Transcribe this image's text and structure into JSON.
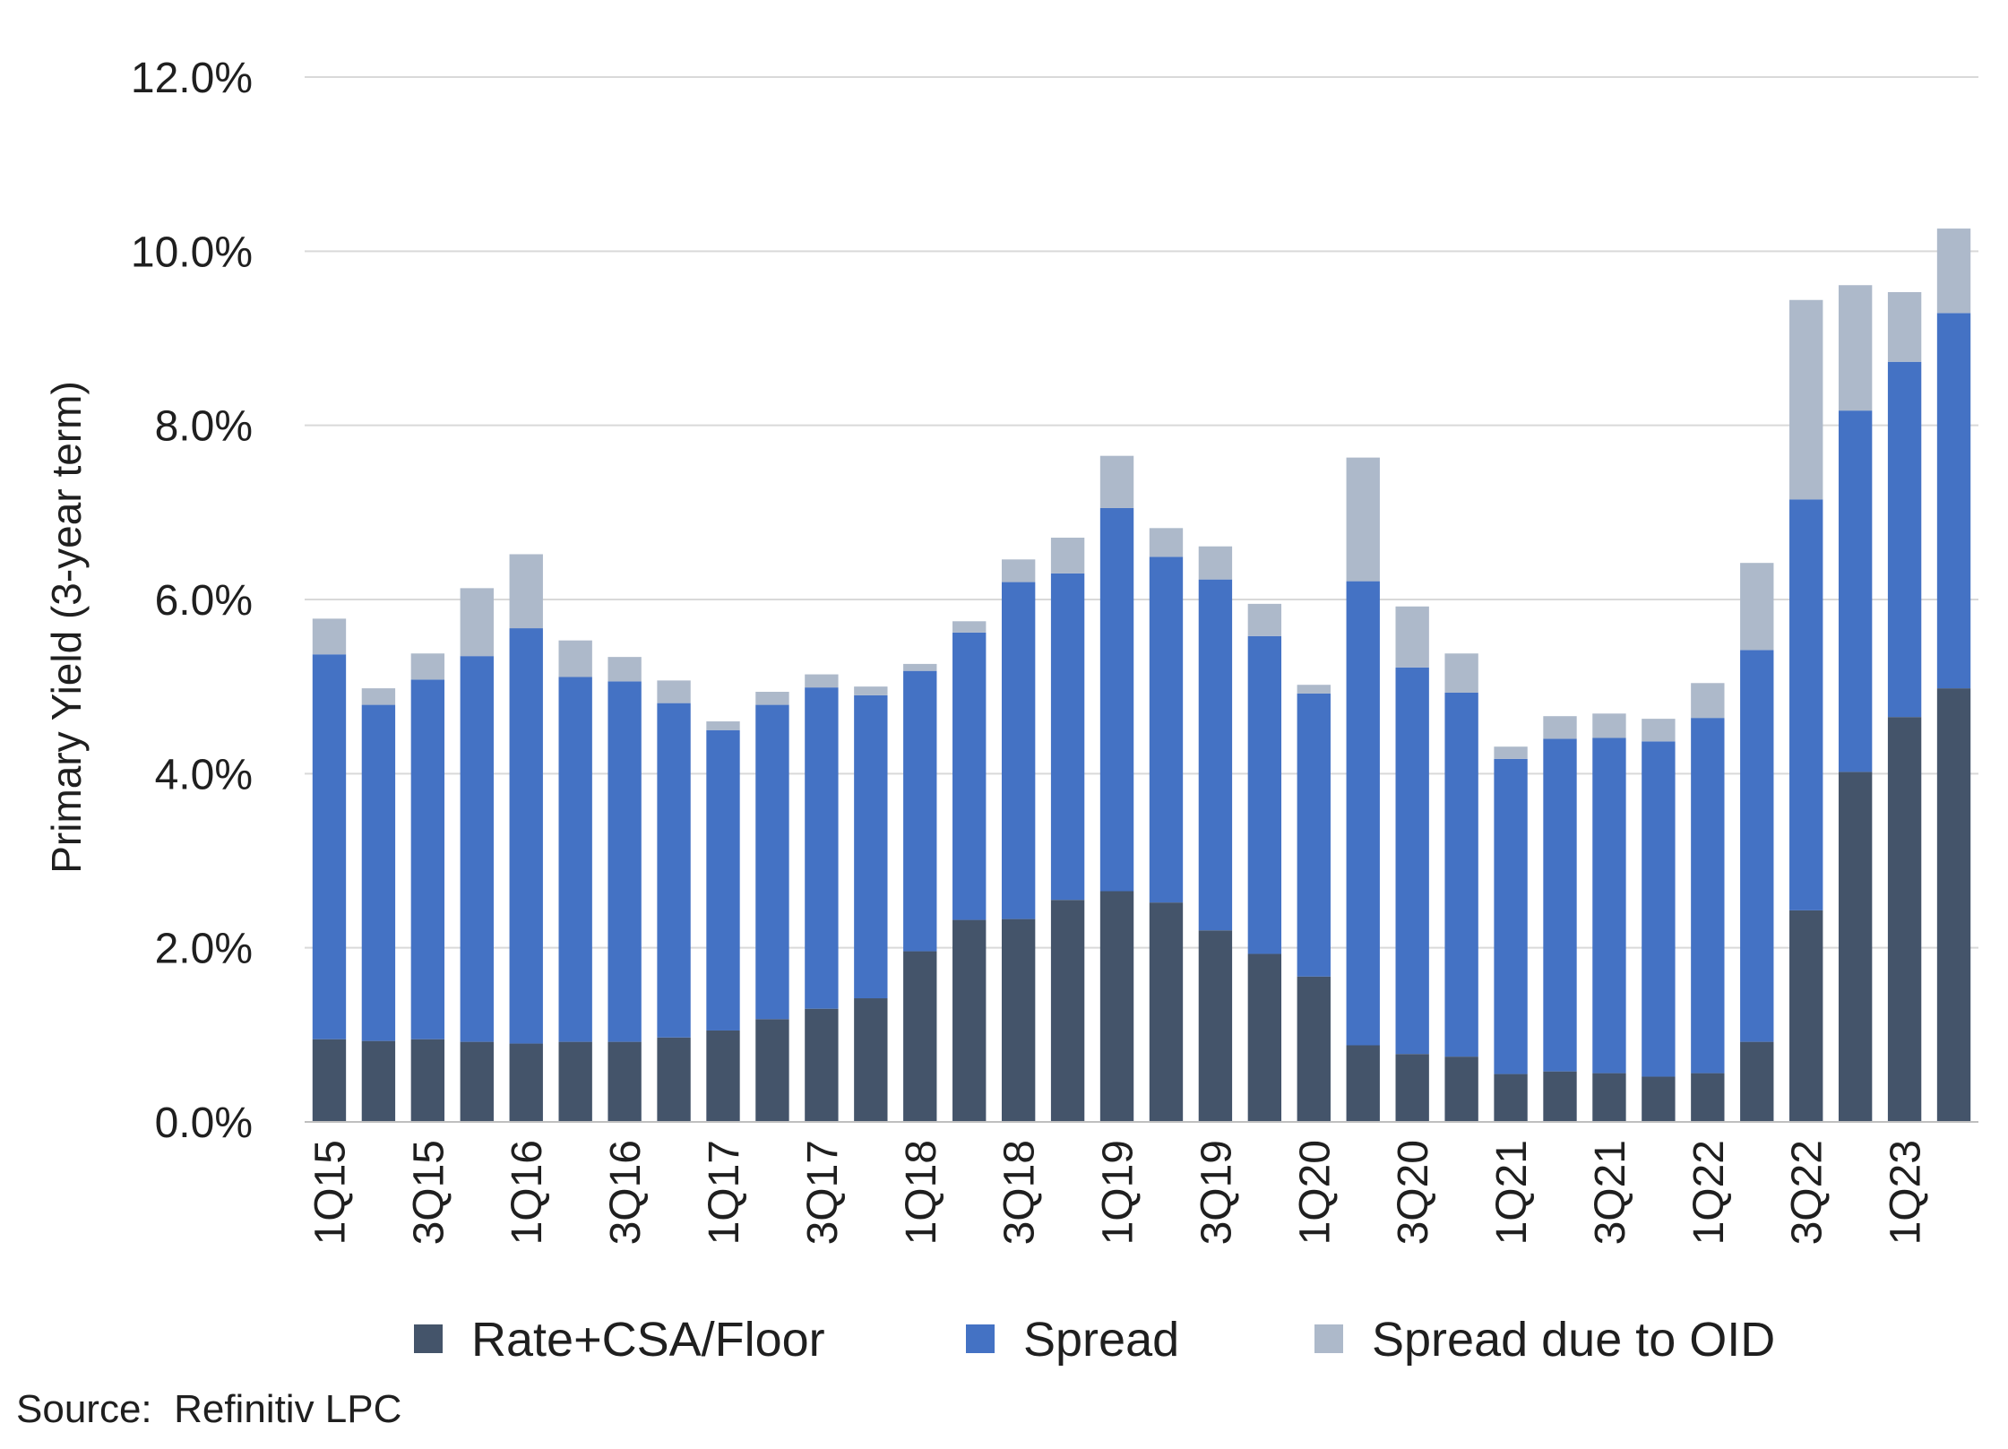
{
  "chart_data": {
    "type": "bar",
    "stacked": true,
    "ylabel": "Primary Yield (3-year term)",
    "ylim": [
      0,
      12
    ],
    "yticks": [
      "0.0%",
      "2.0%",
      "4.0%",
      "6.0%",
      "8.0%",
      "10.0%",
      "12.0%"
    ],
    "grid": true,
    "legend_position": "bottom",
    "categories": [
      "1Q15",
      "2Q15",
      "3Q15",
      "4Q15",
      "1Q16",
      "2Q16",
      "3Q16",
      "4Q16",
      "1Q17",
      "2Q17",
      "3Q17",
      "4Q17",
      "1Q18",
      "2Q18",
      "3Q18",
      "4Q18",
      "1Q19",
      "2Q19",
      "3Q19",
      "4Q19",
      "1Q20",
      "2Q20",
      "3Q20",
      "4Q20",
      "1Q21",
      "2Q21",
      "3Q21",
      "4Q21",
      "1Q22",
      "2Q22",
      "3Q22",
      "4Q22",
      "1Q23",
      "2Q23"
    ],
    "xtick_labels": [
      "1Q15",
      "",
      "3Q15",
      "",
      "1Q16",
      "",
      "3Q16",
      "",
      "1Q17",
      "",
      "3Q17",
      "",
      "1Q18",
      "",
      "3Q18",
      "",
      "1Q19",
      "",
      "3Q19",
      "",
      "1Q20",
      "",
      "3Q20",
      "",
      "1Q21",
      "",
      "3Q21",
      "",
      "1Q22",
      "",
      "3Q22",
      "",
      "1Q23",
      ""
    ],
    "series": [
      {
        "name": "Rate+CSA/Floor",
        "color": "#44546a",
        "values": [
          0.95,
          0.93,
          0.95,
          0.92,
          0.9,
          0.92,
          0.92,
          0.97,
          1.05,
          1.18,
          1.3,
          1.42,
          1.96,
          2.32,
          2.33,
          2.55,
          2.65,
          2.52,
          2.2,
          1.93,
          1.67,
          0.88,
          0.78,
          0.75,
          0.55,
          0.58,
          0.56,
          0.52,
          0.56,
          0.92,
          2.43,
          4.02,
          4.65,
          4.98
        ]
      },
      {
        "name": "Spread",
        "color": "#4472c4",
        "values": [
          4.42,
          3.86,
          4.13,
          4.43,
          4.77,
          4.19,
          4.14,
          3.84,
          3.45,
          3.61,
          3.69,
          3.48,
          3.22,
          3.3,
          3.87,
          3.75,
          4.4,
          3.97,
          4.03,
          3.65,
          3.25,
          5.33,
          4.44,
          4.18,
          3.62,
          3.82,
          3.85,
          3.85,
          4.08,
          4.5,
          4.72,
          4.15,
          4.08,
          4.31
        ]
      },
      {
        "name": "Spread due to OID",
        "color": "#adb9ca",
        "values": [
          0.41,
          0.19,
          0.3,
          0.78,
          0.85,
          0.42,
          0.28,
          0.26,
          0.1,
          0.15,
          0.15,
          0.1,
          0.08,
          0.13,
          0.26,
          0.41,
          0.6,
          0.33,
          0.38,
          0.37,
          0.1,
          1.42,
          0.7,
          0.45,
          0.14,
          0.26,
          0.28,
          0.26,
          0.4,
          1.0,
          2.29,
          1.44,
          0.8,
          0.97
        ]
      }
    ]
  },
  "source": "Source:  Refinitiv LPC"
}
